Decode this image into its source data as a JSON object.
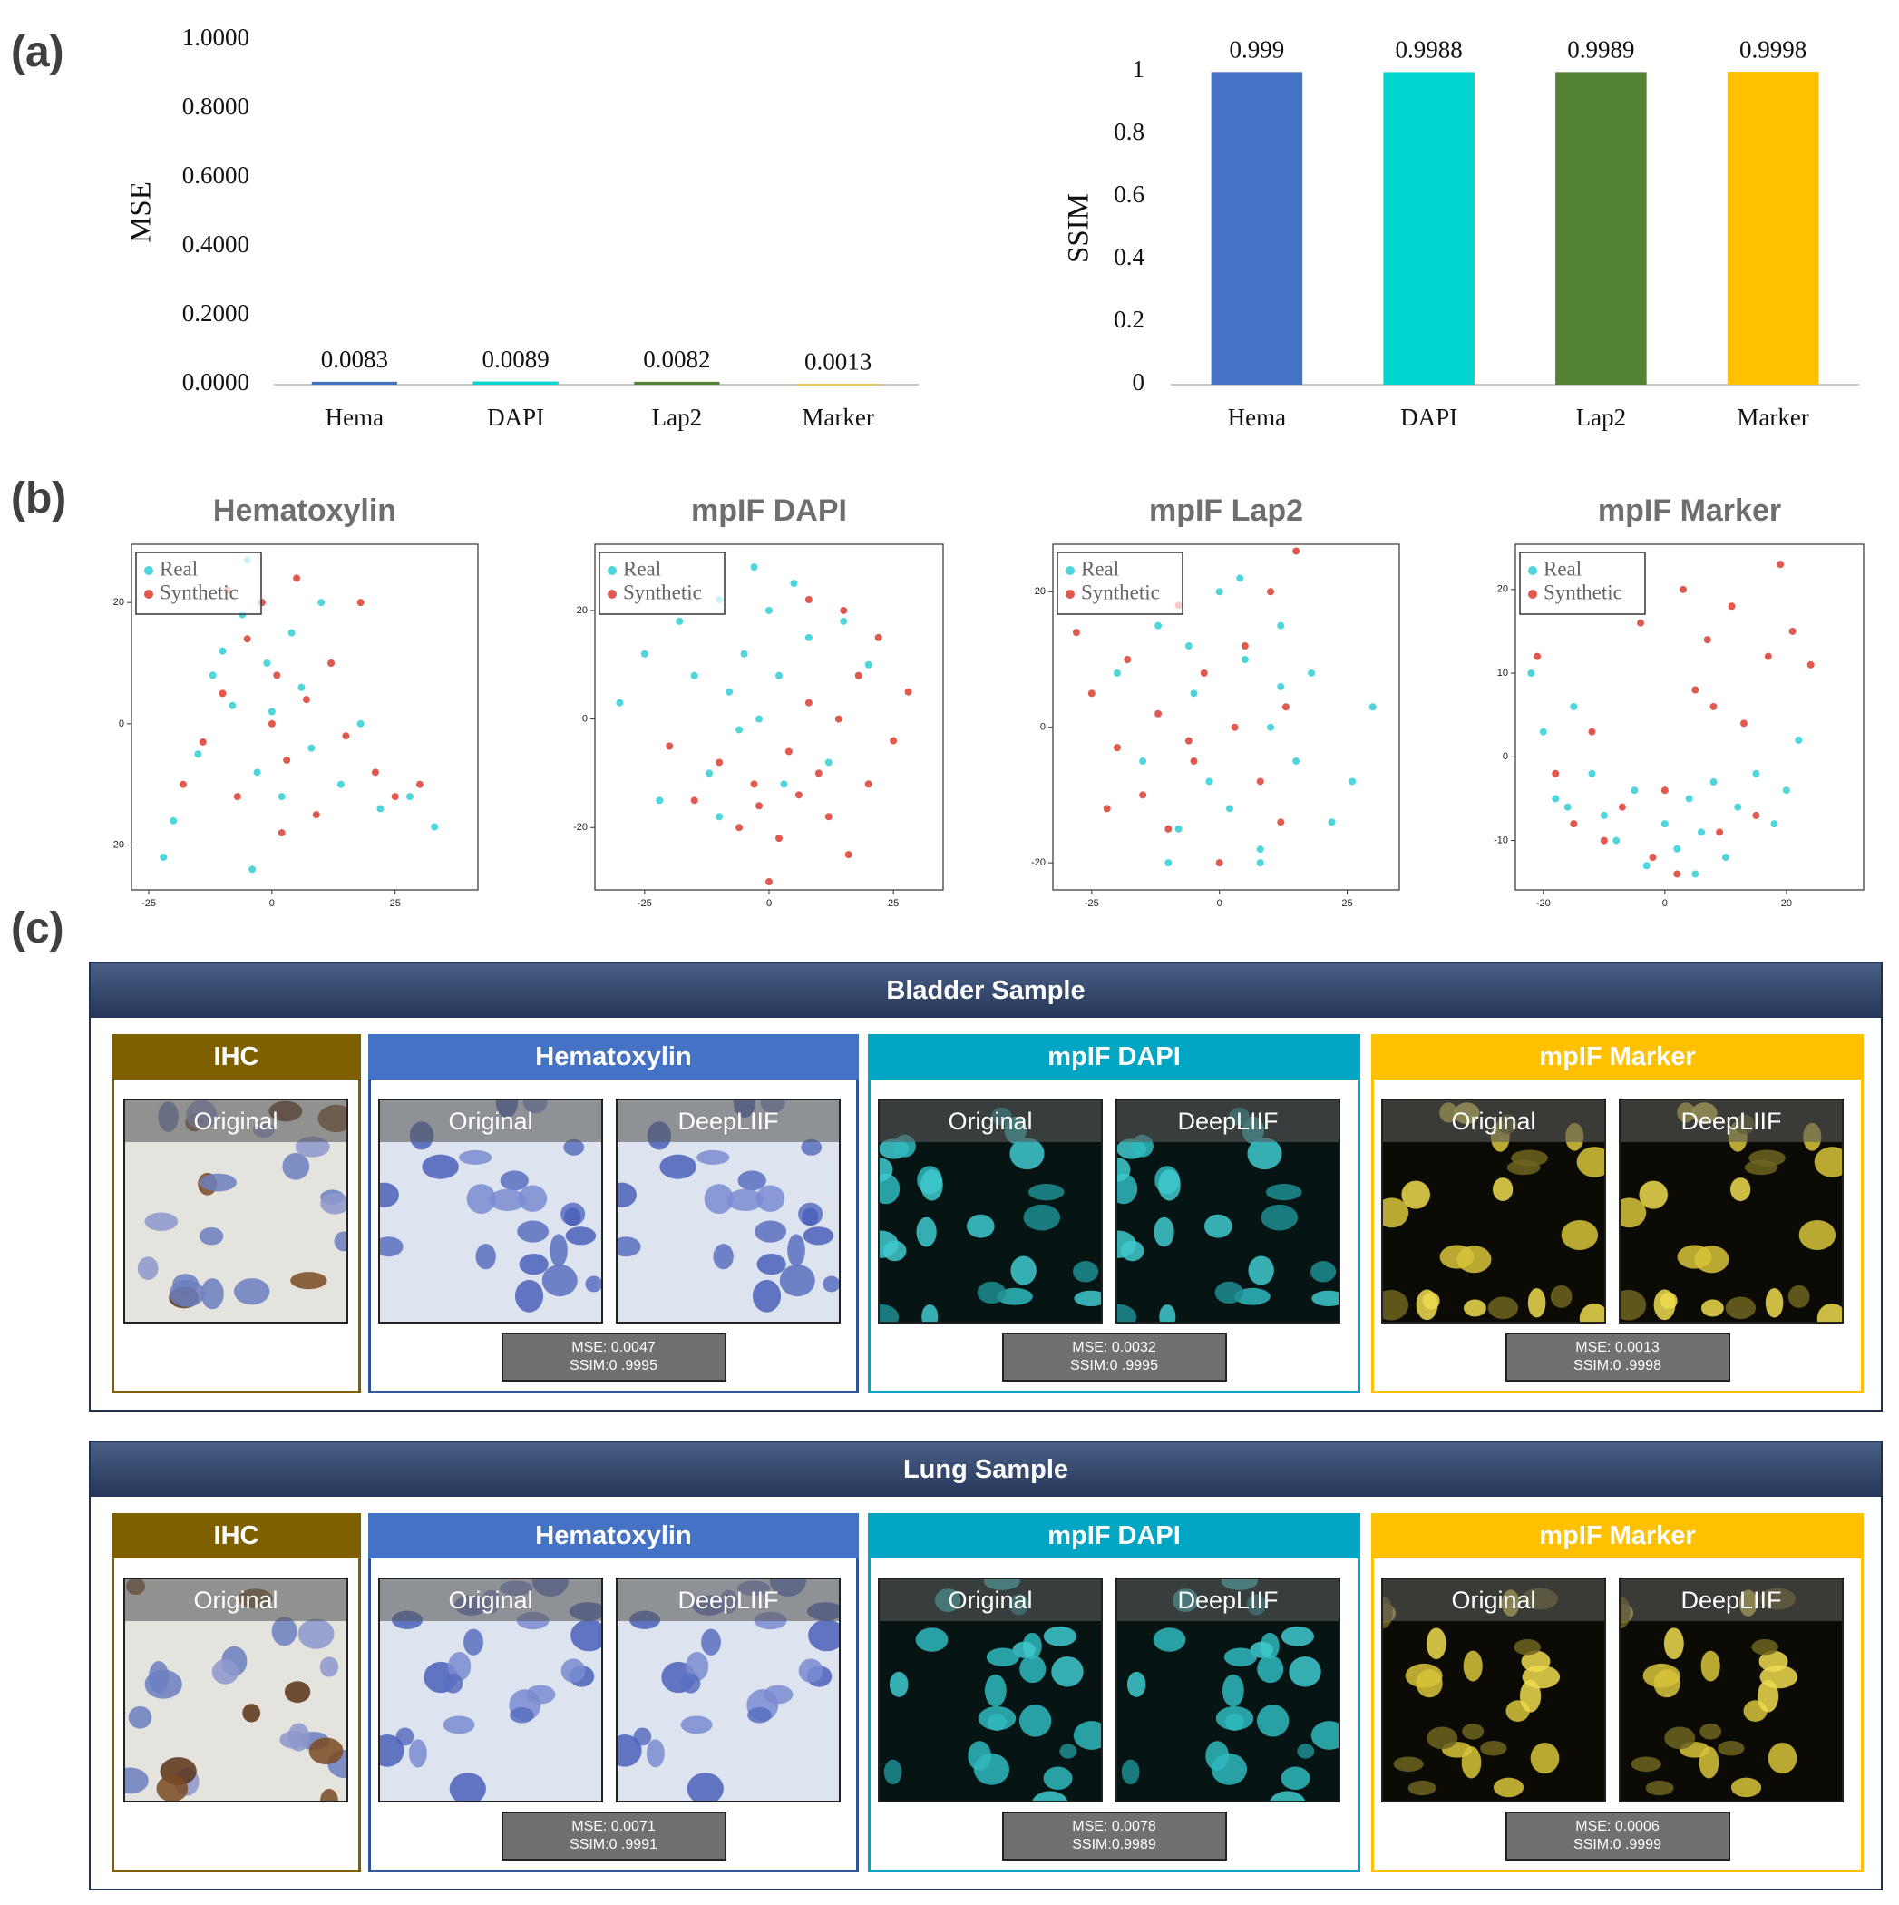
{
  "panel_labels": [
    "(a)",
    "(b)",
    "(c)"
  ],
  "chart_data": [
    {
      "type": "bar",
      "ylabel": "MSE",
      "categories": [
        "Hema",
        "DAPI",
        "Lap2",
        "Marker"
      ],
      "values": [
        0.0083,
        0.0089,
        0.0082,
        0.0013
      ],
      "colors": [
        "#4472c4",
        "#00d5d0",
        "#548235",
        "#ffc000"
      ],
      "ylim": [
        0,
        1
      ],
      "yticks": [
        {
          "value": 0,
          "label": "0.0000"
        },
        {
          "value": 0.2,
          "label": "0.2000"
        },
        {
          "value": 0.4,
          "label": "0.4000"
        },
        {
          "value": 0.6,
          "label": "0.6000"
        },
        {
          "value": 0.8,
          "label": "0.8000"
        },
        {
          "value": 1,
          "label": "1.0000"
        }
      ]
    },
    {
      "type": "bar",
      "ylabel": "SSIM",
      "categories": [
        "Hema",
        "DAPI",
        "Lap2",
        "Marker"
      ],
      "values": [
        0.999,
        0.9988,
        0.9989,
        0.9998
      ],
      "colors": [
        "#4472c4",
        "#00d5d0",
        "#548235",
        "#ffc000"
      ],
      "ylim": [
        0,
        1
      ],
      "yticks": [
        0,
        0.2,
        0.4,
        0.6,
        0.8,
        1
      ]
    },
    {
      "type": "scatter",
      "title": "Hematoxylin",
      "xlim": [
        -28.5,
        41.8
      ],
      "ylim": [
        -27.4,
        29.6
      ],
      "xticks": [
        -25,
        0,
        25
      ],
      "yticks": [
        -20,
        0,
        20
      ],
      "legend": "upper left",
      "series": [
        {
          "name": "Real",
          "color": "#4fd6dc",
          "x": [
            -20,
            -15,
            -12,
            -10,
            -8,
            -6,
            -5,
            -3,
            -1,
            0,
            2,
            4,
            6,
            8,
            10,
            14,
            18,
            22,
            28,
            33,
            -22,
            -4
          ],
          "y": [
            -16,
            -5,
            8,
            12,
            3,
            18,
            27,
            -8,
            10,
            2,
            -12,
            15,
            6,
            -4,
            20,
            -10,
            0,
            -14,
            -12,
            -17,
            -22,
            -24
          ]
        },
        {
          "name": "Synthetic",
          "color": "#e05a50",
          "x": [
            -18,
            -14,
            -10,
            -7,
            -5,
            -2,
            0,
            1,
            3,
            5,
            7,
            9,
            12,
            15,
            18,
            21,
            25,
            30,
            -9,
            2
          ],
          "y": [
            -10,
            -3,
            5,
            -12,
            14,
            20,
            0,
            8,
            -6,
            24,
            4,
            -15,
            10,
            -2,
            20,
            -8,
            -12,
            -10,
            22,
            -18
          ]
        }
      ]
    },
    {
      "type": "scatter",
      "title": "mpIF DAPI",
      "xlim": [
        -35,
        35
      ],
      "ylim": [
        -31.5,
        32.2
      ],
      "xticks": [
        -25,
        0,
        25
      ],
      "yticks": [
        -20,
        0,
        20
      ],
      "legend": "upper left",
      "series": [
        {
          "name": "Real",
          "color": "#4fd6dc",
          "x": [
            -30,
            -25,
            -20,
            -18,
            -15,
            -12,
            -10,
            -8,
            -6,
            -5,
            -3,
            -2,
            0,
            2,
            5,
            8,
            12,
            15,
            20,
            -22,
            -10,
            3
          ],
          "y": [
            3,
            12,
            -5,
            18,
            8,
            -10,
            22,
            5,
            -2,
            12,
            28,
            0,
            20,
            8,
            25,
            15,
            -8,
            18,
            10,
            -15,
            -18,
            -12
          ]
        },
        {
          "name": "Synthetic",
          "color": "#e05a50",
          "x": [
            -20,
            -15,
            -10,
            -6,
            -3,
            0,
            2,
            4,
            6,
            8,
            10,
            12,
            14,
            16,
            18,
            20,
            22,
            25,
            28,
            -2,
            8,
            15
          ],
          "y": [
            -5,
            -15,
            -8,
            -20,
            -12,
            -30,
            -22,
            -6,
            -14,
            3,
            -10,
            -18,
            0,
            -25,
            8,
            -12,
            15,
            -4,
            5,
            -16,
            22,
            20
          ]
        }
      ]
    },
    {
      "type": "scatter",
      "title": "mpIF Lap2",
      "xlim": [
        -32.6,
        35.2
      ],
      "ylim": [
        -24,
        27
      ],
      "xticks": [
        -25,
        0,
        25
      ],
      "yticks": [
        -20,
        0,
        20
      ],
      "legend": "upper left",
      "series": [
        {
          "name": "Real",
          "color": "#4fd6dc",
          "x": [
            -20,
            -15,
            -12,
            -8,
            -5,
            -2,
            0,
            2,
            5,
            8,
            10,
            12,
            15,
            18,
            22,
            26,
            30,
            -10,
            4,
            8,
            -6,
            12
          ],
          "y": [
            8,
            -5,
            15,
            -15,
            5,
            -8,
            20,
            -12,
            10,
            -20,
            0,
            15,
            -5,
            8,
            -14,
            -8,
            3,
            -20,
            22,
            -18,
            12,
            6
          ]
        },
        {
          "name": "Synthetic",
          "color": "#e05a50",
          "x": [
            -28,
            -25,
            -20,
            -18,
            -15,
            -12,
            -10,
            -8,
            -5,
            -3,
            0,
            3,
            5,
            8,
            10,
            13,
            15,
            -22,
            -6,
            12
          ],
          "y": [
            14,
            5,
            -3,
            10,
            -10,
            2,
            -15,
            18,
            -5,
            8,
            -20,
            0,
            12,
            -8,
            20,
            3,
            26,
            -12,
            -2,
            -14
          ]
        }
      ]
    },
    {
      "type": "scatter",
      "title": "mpIF Marker",
      "xlim": [
        -24.6,
        32.7
      ],
      "ylim": [
        -15.9,
        25.4
      ],
      "xticks": [
        -20,
        0,
        20
      ],
      "yticks": [
        -10,
        0,
        10,
        20
      ],
      "legend": "upper left",
      "series": [
        {
          "name": "Real",
          "color": "#4fd6dc",
          "x": [
            -22,
            -20,
            -18,
            -15,
            -12,
            -10,
            -8,
            -5,
            -3,
            0,
            2,
            4,
            6,
            8,
            10,
            12,
            15,
            18,
            20,
            22,
            -16,
            5
          ],
          "y": [
            10,
            3,
            -5,
            6,
            -2,
            -7,
            -10,
            -4,
            -13,
            -8,
            -11,
            -5,
            -9,
            -3,
            -12,
            -6,
            -2,
            -8,
            -4,
            2,
            -6,
            -14
          ]
        },
        {
          "name": "Synthetic",
          "color": "#e05a50",
          "x": [
            -21,
            -18,
            -15,
            -12,
            -10,
            -7,
            -4,
            -2,
            0,
            3,
            5,
            7,
            9,
            11,
            13,
            15,
            17,
            19,
            21,
            24,
            2,
            8
          ],
          "y": [
            12,
            -2,
            -8,
            3,
            -10,
            -6,
            16,
            -12,
            -4,
            20,
            8,
            14,
            -9,
            18,
            4,
            -7,
            12,
            23,
            15,
            11,
            -14,
            6
          ]
        }
      ]
    }
  ],
  "samples": [
    {
      "title": "Bladder Sample",
      "groups": [
        {
          "title": "IHC",
          "images": [
            "Original"
          ]
        },
        {
          "title": "Hematoxylin",
          "images": [
            "Original",
            "DeepLIIF"
          ],
          "metrics": [
            "MSE: 0.0047",
            "SSIM:0 .9995"
          ]
        },
        {
          "title": "mpIF DAPI",
          "images": [
            "Original",
            "DeepLIIF"
          ],
          "metrics": [
            "MSE: 0.0032",
            "SSIM:0 .9995"
          ]
        },
        {
          "title": "mpIF Marker",
          "images": [
            "Original",
            "DeepLIIF"
          ],
          "metrics": [
            "MSE: 0.0013",
            "SSIM:0 .9998"
          ]
        }
      ]
    },
    {
      "title": "Lung Sample",
      "groups": [
        {
          "title": "IHC",
          "images": [
            "Original"
          ]
        },
        {
          "title": "Hematoxylin",
          "images": [
            "Original",
            "DeepLIIF"
          ],
          "metrics": [
            "MSE: 0.0071",
            "SSIM:0 .9991"
          ]
        },
        {
          "title": "mpIF DAPI",
          "images": [
            "Original",
            "DeepLIIF"
          ],
          "metrics": [
            "MSE: 0.0078",
            "SSIM:0.9989"
          ]
        },
        {
          "title": "mpIF Marker",
          "images": [
            "Original",
            "DeepLIIF"
          ],
          "metrics": [
            "MSE: 0.0006",
            "SSIM:0 .9999"
          ]
        }
      ]
    }
  ]
}
